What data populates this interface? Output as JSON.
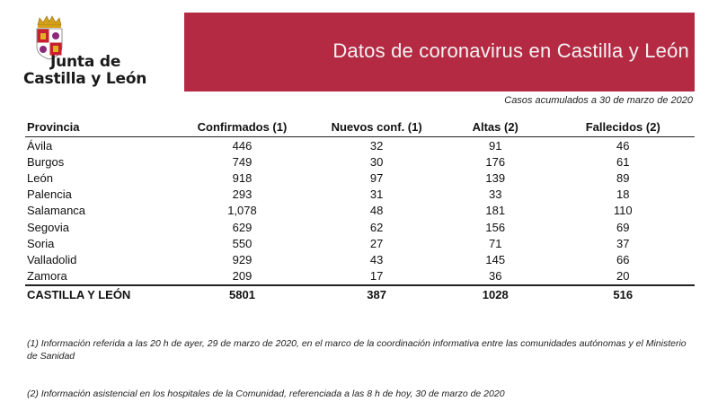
{
  "logo": {
    "line1": "Junta de",
    "line2": "Castilla y León"
  },
  "banner": {
    "title": "Datos de coronavirus en Castilla y León",
    "color": "#b52a43"
  },
  "subtitle": "Casos acumulados a 30 de marzo de 2020",
  "table": {
    "headers": [
      "Provincia",
      "Confirmados (1)",
      "Nuevos conf. (1)",
      "Altas (2)",
      "Fallecidos (2)"
    ],
    "rows": [
      [
        "Ávila",
        "446",
        "32",
        "91",
        "46"
      ],
      [
        "Burgos",
        "749",
        "30",
        "176",
        "61"
      ],
      [
        "León",
        "918",
        "97",
        "139",
        "89"
      ],
      [
        "Palencia",
        "293",
        "31",
        "33",
        "18"
      ],
      [
        "Salamanca",
        "1,078",
        "48",
        "181",
        "110"
      ],
      [
        "Segovia",
        "629",
        "62",
        "156",
        "69"
      ],
      [
        "Soria",
        "550",
        "27",
        "71",
        "37"
      ],
      [
        "Valladolid",
        "929",
        "43",
        "145",
        "66"
      ],
      [
        "Zamora",
        "209",
        "17",
        "36",
        "20"
      ]
    ],
    "total": [
      "CASTILLA Y LEÓN",
      "5801",
      "387",
      "1028",
      "516"
    ]
  },
  "notes": {
    "note1": "(1) Información referida a las 20 h de ayer, 29 de marzo de 2020, en el marco de la coordinación informativa entre las comunidades autónomas y el Ministerio de Sanidad",
    "note2": "(2) Información asistencial en los hospitales de la Comunidad, referenciada a las 8 h de hoy, 30 de marzo de 2020"
  }
}
